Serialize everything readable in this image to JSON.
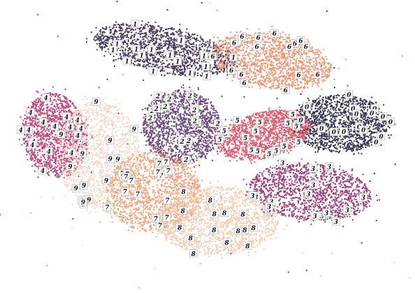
{
  "chart_data": {
    "type": "scatter",
    "title": "",
    "xlabel": "",
    "ylabel": "",
    "grid": false,
    "legend": "none",
    "axes_visible": false,
    "xlim": [
      -12,
      12
    ],
    "ylim": [
      -10,
      10
    ],
    "series": [
      {
        "cluster": "1",
        "color": "#4a3a5e",
        "center": [
          -2.5,
          6.8
        ],
        "spread": [
          4.3,
          1.6
        ],
        "rotation_deg": -14
      },
      {
        "cluster": "6",
        "color": "#f29671",
        "center": [
          3.8,
          6.0
        ],
        "spread": [
          3.6,
          1.9
        ],
        "rotation_deg": -12
      },
      {
        "cluster": "0",
        "color": "#353650",
        "center": [
          7.8,
          1.6
        ],
        "spread": [
          2.9,
          2.0
        ],
        "rotation_deg": 0
      },
      {
        "cluster": "4",
        "color": "#c2457a",
        "center": [
          -9.0,
          0.8
        ],
        "spread": [
          1.9,
          3.0
        ],
        "rotation_deg": 8
      },
      {
        "cluster": "2",
        "color": "#6b4a7d",
        "center": [
          -1.5,
          1.4
        ],
        "spread": [
          2.3,
          2.6
        ],
        "rotation_deg": 10
      },
      {
        "cluster": "5",
        "color": "#e3596a",
        "center": [
          3.3,
          0.8
        ],
        "spread": [
          2.8,
          1.6
        ],
        "rotation_deg": 18
      },
      {
        "cluster": "9",
        "color": "#f6d8cb",
        "center": [
          -6.4,
          -0.6
        ],
        "spread": [
          2.4,
          3.8
        ],
        "rotation_deg": 0
      },
      {
        "cluster": "7",
        "color": "#f2a47c",
        "center": [
          -3.2,
          -3.2
        ],
        "spread": [
          2.8,
          2.8
        ],
        "rotation_deg": 0
      },
      {
        "cluster": "8",
        "color": "#f7cbad",
        "center": [
          0.6,
          -5.2
        ],
        "spread": [
          3.6,
          2.4
        ],
        "rotation_deg": 0
      },
      {
        "cluster": "3",
        "color": "#9d3f77",
        "center": [
          6.1,
          -3.2
        ],
        "spread": [
          3.6,
          2.0
        ],
        "rotation_deg": -8
      }
    ],
    "image_labels": [
      "0",
      "1",
      "2",
      "3",
      "4",
      "5",
      "6",
      "7",
      "8",
      "9"
    ]
  }
}
